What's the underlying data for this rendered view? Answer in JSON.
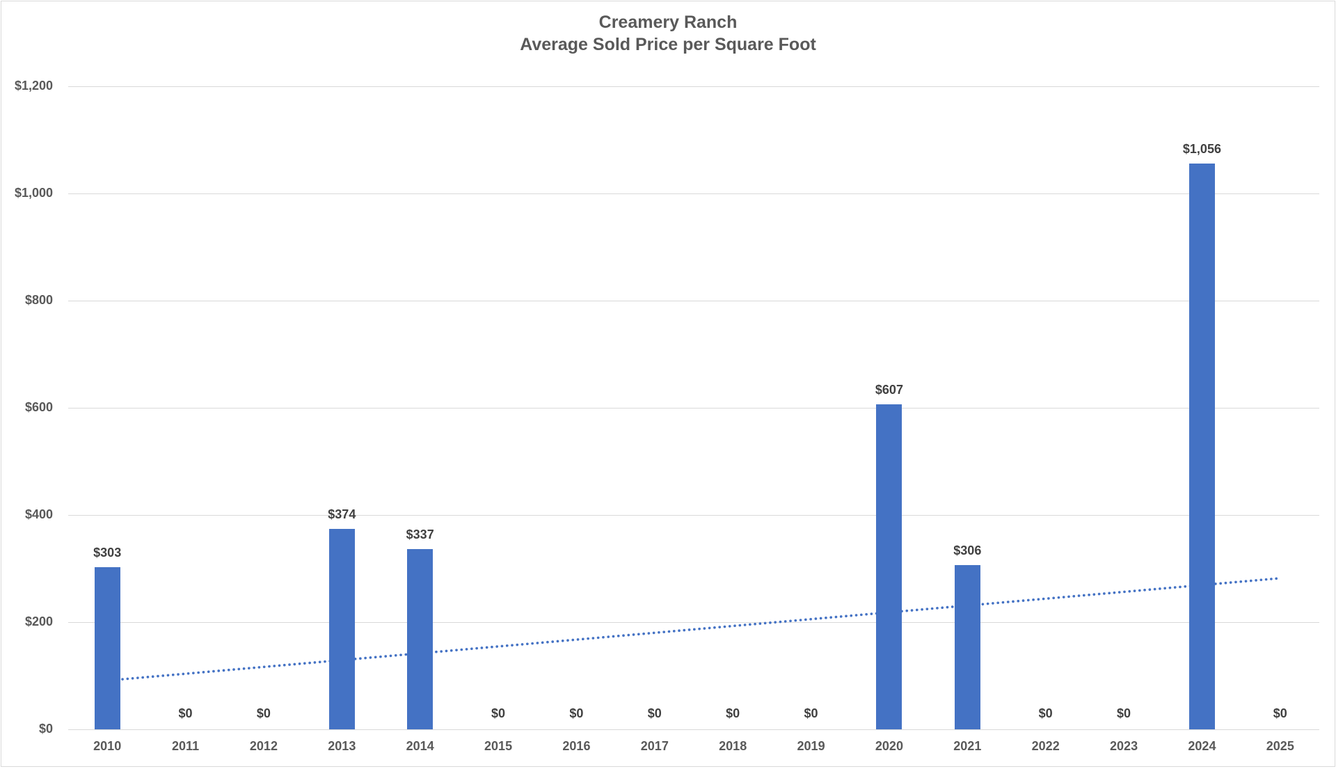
{
  "page": {
    "background_color": "#ffffff",
    "frame_border_color": "#d9d9d9"
  },
  "chart_data": {
    "type": "bar",
    "title_line1": "Creamery Ranch",
    "title_line2": "Average Sold Price per Square Foot",
    "xlabel": "",
    "ylabel": "",
    "categories": [
      "2010",
      "2011",
      "2012",
      "2013",
      "2014",
      "2015",
      "2016",
      "2017",
      "2018",
      "2019",
      "2020",
      "2021",
      "2022",
      "2023",
      "2024",
      "2025"
    ],
    "values": [
      303,
      0,
      0,
      374,
      337,
      0,
      0,
      0,
      0,
      0,
      607,
      306,
      0,
      0,
      1056,
      0
    ],
    "value_labels": [
      "$303",
      "$0",
      "$0",
      "$374",
      "$337",
      "$0",
      "$0",
      "$0",
      "$0",
      "$0",
      "$607",
      "$306",
      "$0",
      "$0",
      "$1,056",
      "$0"
    ],
    "ylim": [
      0,
      1200
    ],
    "y_ticks": [
      0,
      200,
      400,
      600,
      800,
      1000,
      1200
    ],
    "y_tick_labels": [
      "$0",
      "$200",
      "$400",
      "$600",
      "$800",
      "$1,000",
      "$1,200"
    ],
    "grid": "horizontal",
    "legend": "none",
    "bar_color": "#4472C4",
    "gridline_color": "#d9d9d9",
    "title_color": "#595959",
    "axis_label_color": "#595959",
    "data_label_color": "#404040",
    "trendline": {
      "type": "linear",
      "style": "dotted",
      "color": "#4472C4",
      "start_value": 91,
      "end_value": 282
    }
  }
}
